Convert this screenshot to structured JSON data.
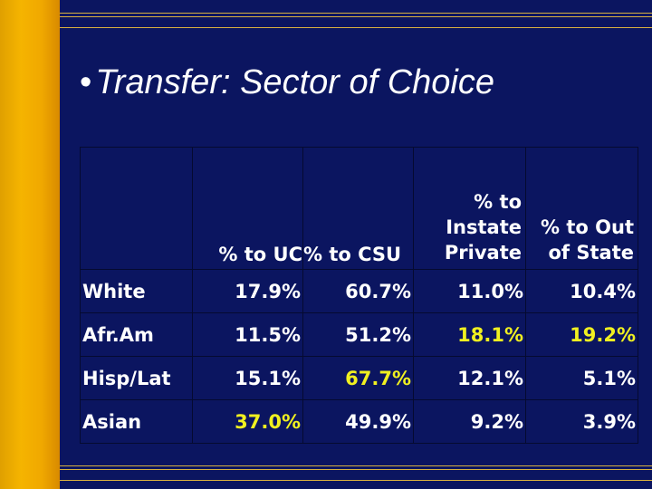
{
  "title": "Transfer: Sector of Choice",
  "title_bullet": "•",
  "colors": {
    "background": "#0b1560",
    "side_bar": "#f0a800",
    "highlight": "#f0f020"
  },
  "table": {
    "headers": [
      "",
      "% to UC",
      "% to CSU",
      "% to Instate Private",
      "% to Out of State"
    ],
    "rows": [
      {
        "label": "White",
        "values": [
          "17.9%",
          "60.7%",
          "11.0%",
          "10.4%"
        ],
        "highlight": [
          false,
          false,
          false,
          false
        ]
      },
      {
        "label": "Afr.Am",
        "values": [
          "11.5%",
          "51.2%",
          "18.1%",
          "19.2%"
        ],
        "highlight": [
          false,
          false,
          true,
          true
        ]
      },
      {
        "label": "Hisp/Lat",
        "values": [
          "15.1%",
          "67.7%",
          "12.1%",
          "5.1%"
        ],
        "highlight": [
          false,
          true,
          false,
          false
        ]
      },
      {
        "label": "Asian",
        "values": [
          "37.0%",
          "49.9%",
          "9.2%",
          "3.9%"
        ],
        "highlight": [
          true,
          false,
          false,
          false
        ]
      }
    ]
  }
}
